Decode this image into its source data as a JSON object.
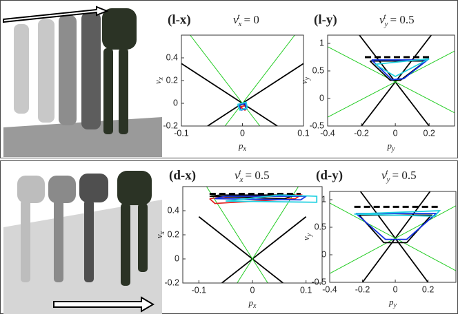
{
  "chart_data": [
    {
      "type": "line",
      "panel_label": "(l-x)",
      "title": {
        "var": "v",
        "sub": "x",
        "sup": "t",
        "rhs": "= 0"
      },
      "xlabel": {
        "var": "p",
        "sub": "x"
      },
      "ylabel": {
        "var": "v",
        "sub": "x"
      },
      "xlim": [
        -0.1,
        0.1
      ],
      "ylim": [
        -0.2,
        0.6
      ],
      "xticks": [
        -0.1,
        0,
        0.1
      ],
      "yticks": [
        -0.2,
        0,
        0.2,
        0.4
      ],
      "series": [
        {
          "color": "#000000",
          "x": [
            -0.1,
            0.0571
          ],
          "values": [
            0.35,
            -0.2
          ]
        },
        {
          "color": "#000000",
          "x": [
            -0.0571,
            0.1
          ],
          "values": [
            -0.2,
            0.35
          ]
        },
        {
          "color": "#22cc22",
          "x": [
            -0.0286,
            0.0857
          ],
          "values": [
            -0.2,
            0.6
          ]
        },
        {
          "color": "#22cc22",
          "x": [
            -0.0857,
            0.0286
          ],
          "values": [
            0.6,
            -0.2
          ]
        },
        {
          "color": "#e02020",
          "x": [
            -0.004,
            0.006,
            0.004,
            -0.004
          ],
          "values": [
            -0.03,
            -0.02,
            -0.06,
            -0.03
          ]
        },
        {
          "color": "#1030e0",
          "x": [
            -0.006,
            0.004,
            0.006,
            -0.002,
            -0.006
          ],
          "values": [
            -0.02,
            0.0,
            -0.05,
            -0.06,
            -0.02
          ]
        },
        {
          "color": "#20d0e0",
          "x": [
            -0.008,
            0.006,
            0.008,
            -0.004,
            -0.008
          ],
          "values": [
            -0.01,
            0.01,
            -0.04,
            -0.06,
            -0.01
          ]
        }
      ]
    },
    {
      "type": "line",
      "panel_label": "(l-y)",
      "title": {
        "var": "v",
        "sub": "y",
        "sup": "t",
        "rhs": "= 0.5"
      },
      "xlabel": {
        "var": "p",
        "sub": "y"
      },
      "ylabel": {
        "var": "v",
        "sub": "y"
      },
      "xlim": [
        -0.4,
        0.35
      ],
      "ylim": [
        -0.5,
        1.15
      ],
      "xticks": [
        -0.4,
        -0.2,
        0,
        0.2
      ],
      "yticks": [
        -0.5,
        0,
        0.5,
        1
      ],
      "series": [
        {
          "color": "#000000",
          "x": [
            -0.2125,
            0.2
          ],
          "values": [
            1.15,
            -0.5
          ]
        },
        {
          "color": "#000000",
          "x": [
            -0.2,
            0.2125
          ],
          "values": [
            -0.5,
            1.15
          ]
        },
        {
          "color": "#22cc22",
          "x": [
            -0.4,
            0.35
          ],
          "values": [
            0.94,
            -0.26
          ]
        },
        {
          "color": "#22cc22",
          "x": [
            -0.4,
            0.35
          ],
          "values": [
            -0.34,
            0.86
          ]
        },
        {
          "color": "#000000",
          "dash": true,
          "x": [
            -0.18,
            0.2
          ],
          "values": [
            0.75,
            0.75
          ]
        },
        {
          "color": "#000000",
          "x": [
            -0.15,
            0.18,
            0.03,
            -0.03,
            -0.15
          ],
          "values": [
            0.68,
            0.68,
            0.33,
            0.33,
            0.68
          ]
        },
        {
          "color": "#1030e0",
          "x": [
            -0.14,
            0.19,
            0.05,
            -0.02,
            -0.14
          ],
          "values": [
            0.7,
            0.7,
            0.36,
            0.34,
            0.7
          ]
        },
        {
          "color": "#20d0e0",
          "x": [
            -0.12,
            0.2,
            0.0,
            -0.12
          ],
          "values": [
            0.62,
            0.72,
            0.4,
            0.62
          ]
        }
      ]
    },
    {
      "type": "line",
      "panel_label": "(d-x)",
      "title": {
        "var": "v",
        "sub": "x",
        "sup": "t",
        "rhs": "= 0.5"
      },
      "xlabel": {
        "var": "p",
        "sub": "x"
      },
      "ylabel": {
        "var": "v",
        "sub": "x"
      },
      "xlim": [
        -0.13,
        0.13
      ],
      "ylim": [
        -0.2,
        0.6
      ],
      "xticks": [
        -0.1,
        0,
        0.1
      ],
      "yticks": [
        -0.2,
        0,
        0.2,
        0.4
      ],
      "series": [
        {
          "color": "#000000",
          "x": [
            -0.1,
            0.0571
          ],
          "values": [
            0.35,
            -0.2
          ]
        },
        {
          "color": "#000000",
          "x": [
            -0.0571,
            0.1
          ],
          "values": [
            -0.2,
            0.35
          ]
        },
        {
          "color": "#22cc22",
          "x": [
            -0.0286,
            0.0857
          ],
          "values": [
            -0.2,
            0.6
          ]
        },
        {
          "color": "#22cc22",
          "x": [
            -0.0857,
            0.0286
          ],
          "values": [
            0.6,
            -0.2
          ]
        },
        {
          "color": "#000000",
          "dash": true,
          "x": [
            -0.08,
            0.09
          ],
          "values": [
            0.54,
            0.54
          ]
        },
        {
          "color": "#e02020",
          "x": [
            -0.08,
            -0.07,
            0.08,
            0.09,
            -0.06,
            -0.08
          ],
          "values": [
            0.5,
            0.46,
            0.5,
            0.53,
            0.51,
            0.5
          ]
        },
        {
          "color": "#000000",
          "x": [
            -0.08,
            0.06,
            0.08,
            -0.06,
            -0.08
          ],
          "values": [
            0.52,
            0.5,
            0.53,
            0.53,
            0.52
          ]
        },
        {
          "color": "#1030e0",
          "x": [
            -0.07,
            0.09,
            0.1,
            -0.05,
            -0.07
          ],
          "values": [
            0.5,
            0.49,
            0.52,
            0.52,
            0.5
          ]
        },
        {
          "color": "#20d0e0",
          "x": [
            -0.05,
            0.12,
            0.12,
            0.05,
            -0.05
          ],
          "values": [
            0.48,
            0.47,
            0.52,
            0.53,
            0.48
          ]
        }
      ]
    },
    {
      "type": "line",
      "panel_label": "(d-y)",
      "title": {
        "var": "v",
        "sub": "y",
        "sup": "t",
        "rhs": "= 0.5"
      },
      "xlabel": {
        "var": "p",
        "sub": "y"
      },
      "ylabel": {
        "var": "v",
        "sub": "y"
      },
      "xlim": [
        -0.4,
        0.37
      ],
      "ylim": [
        -0.5,
        1.15
      ],
      "xticks": [
        -0.4,
        -0.2,
        0,
        0.2
      ],
      "yticks": [
        -0.5,
        0,
        0.5,
        1
      ],
      "series": [
        {
          "color": "#000000",
          "x": [
            -0.2125,
            0.2
          ],
          "values": [
            1.15,
            -0.5
          ]
        },
        {
          "color": "#000000",
          "x": [
            -0.2,
            0.2125
          ],
          "values": [
            -0.5,
            1.15
          ]
        },
        {
          "color": "#22cc22",
          "x": [
            -0.4,
            0.37
          ],
          "values": [
            0.94,
            -0.29
          ]
        },
        {
          "color": "#22cc22",
          "x": [
            -0.4,
            0.37
          ],
          "values": [
            -0.34,
            0.89
          ]
        },
        {
          "color": "#000000",
          "dash": true,
          "x": [
            -0.25,
            0.28
          ],
          "values": [
            0.87,
            0.87
          ]
        },
        {
          "color": "#000000",
          "x": [
            -0.22,
            0.22,
            0.07,
            -0.07,
            -0.22
          ],
          "values": [
            0.72,
            0.72,
            0.22,
            0.22,
            0.72
          ]
        },
        {
          "color": "#1030e0",
          "x": [
            -0.24,
            0.25,
            0.07,
            -0.06,
            -0.24
          ],
          "values": [
            0.75,
            0.75,
            0.28,
            0.28,
            0.75
          ]
        },
        {
          "color": "#20d0e0",
          "x": [
            -0.25,
            0.27,
            0.24,
            -0.25
          ],
          "values": [
            0.74,
            0.8,
            0.7,
            0.74
          ]
        }
      ]
    }
  ]
}
